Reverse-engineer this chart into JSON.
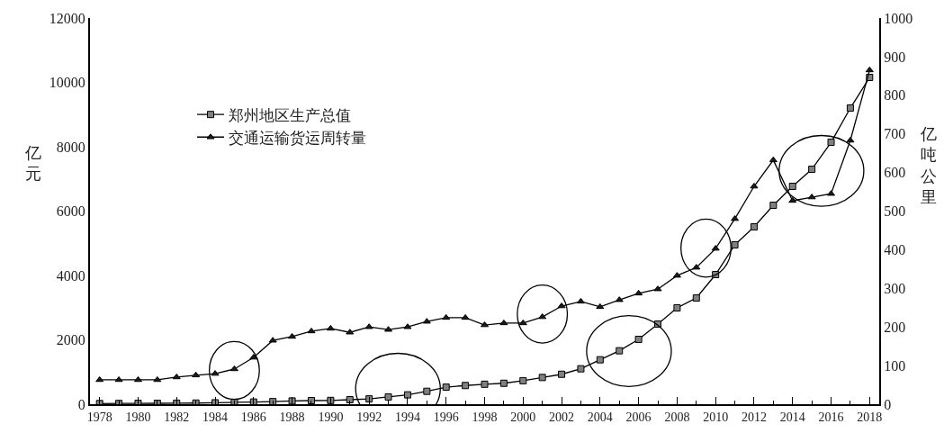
{
  "chart_data": {
    "type": "line",
    "x": [
      1978,
      1979,
      1980,
      1981,
      1982,
      1983,
      1984,
      1985,
      1986,
      1987,
      1988,
      1989,
      1990,
      1991,
      1992,
      1993,
      1994,
      1995,
      1996,
      1997,
      1998,
      1999,
      2000,
      2001,
      2002,
      2003,
      2004,
      2005,
      2006,
      2007,
      2008,
      2009,
      2010,
      2011,
      2012,
      2013,
      2014,
      2015,
      2016,
      2017,
      2018
    ],
    "series": [
      {
        "name": "郑州地区生产总值",
        "color": "#808080",
        "marker": "square",
        "values": [
          20,
          23,
          26,
          28,
          31,
          35,
          44,
          58,
          67,
          80,
          100,
          112,
          117,
          140,
          165,
          225,
          290,
          400,
          530,
          580,
          620,
          650,
          730,
          830,
          930,
          1100,
          1380,
          1660,
          2014,
          2490,
          2993,
          3300,
          4028,
          4951,
          5510,
          6181,
          6769,
          7300,
          8139,
          9202,
          10153
        ]
      },
      {
        "name": "交通运输货运周转量",
        "color": "#1a1a1a",
        "marker": "triangle",
        "axis": "y2",
        "values": [
          63,
          63,
          63,
          63,
          70,
          75,
          79,
          91,
          121,
          165,
          175,
          189,
          196,
          186,
          200,
          193,
          200,
          214,
          224,
          224,
          205,
          210,
          210,
          226,
          254,
          266,
          252,
          270,
          287,
          298,
          333,
          354,
          403,
          480,
          564,
          632,
          527,
          536,
          545,
          683,
          865
        ]
      }
    ],
    "ylabel": "亿元",
    "y2label": "亿吨公里",
    "xlim": [
      1977.5,
      2018.5
    ],
    "xticks": [
      1978,
      1980,
      1982,
      1984,
      1986,
      1988,
      1990,
      1992,
      1994,
      1996,
      1998,
      2000,
      2002,
      2004,
      2006,
      2008,
      2010,
      2012,
      2014,
      2016,
      2018
    ],
    "ylim": [
      0,
      12000
    ],
    "yticks": [
      0,
      2000,
      4000,
      6000,
      8000,
      10000,
      12000
    ],
    "y2lim": [
      0,
      1000
    ],
    "y2ticks": [
      0,
      100,
      200,
      300,
      400,
      500,
      600,
      700,
      800,
      900,
      1000
    ],
    "legend": "left",
    "grid": false,
    "line_style": "solid"
  }
}
